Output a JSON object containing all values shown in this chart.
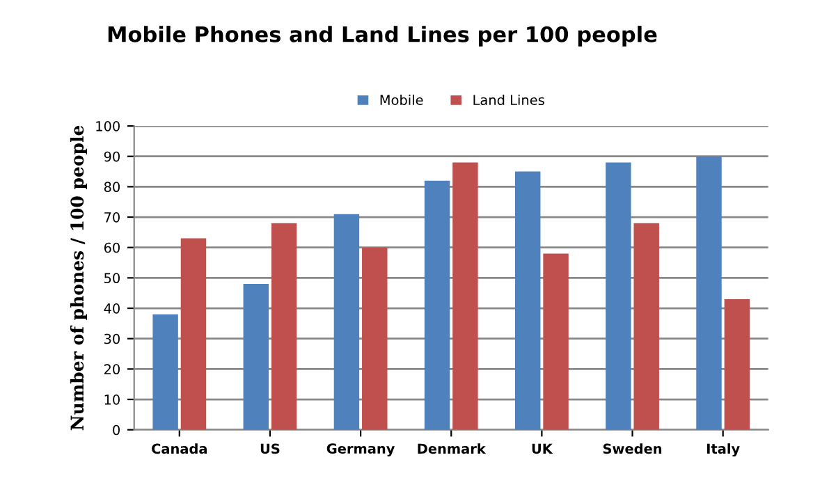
{
  "chart_data": {
    "type": "bar",
    "title": "Mobile Phones and Land Lines per 100 people",
    "ylabel": "Number of phones / 100 people",
    "categories": [
      "Canada",
      "US",
      "Germany",
      "Denmark",
      "UK",
      "Sweden",
      "Italy"
    ],
    "series": [
      {
        "name": "Mobile",
        "color": "#4f81bd",
        "values": [
          38,
          48,
          71,
          82,
          85,
          88,
          90
        ]
      },
      {
        "name": "Land Lines",
        "color": "#c0504d",
        "values": [
          63,
          68,
          60,
          88,
          58,
          68,
          43
        ]
      }
    ],
    "ylim": [
      0,
      100
    ],
    "yticks": [
      0,
      10,
      20,
      30,
      40,
      50,
      60,
      70,
      80,
      90,
      100
    ],
    "grid": "y",
    "legend": "top"
  }
}
